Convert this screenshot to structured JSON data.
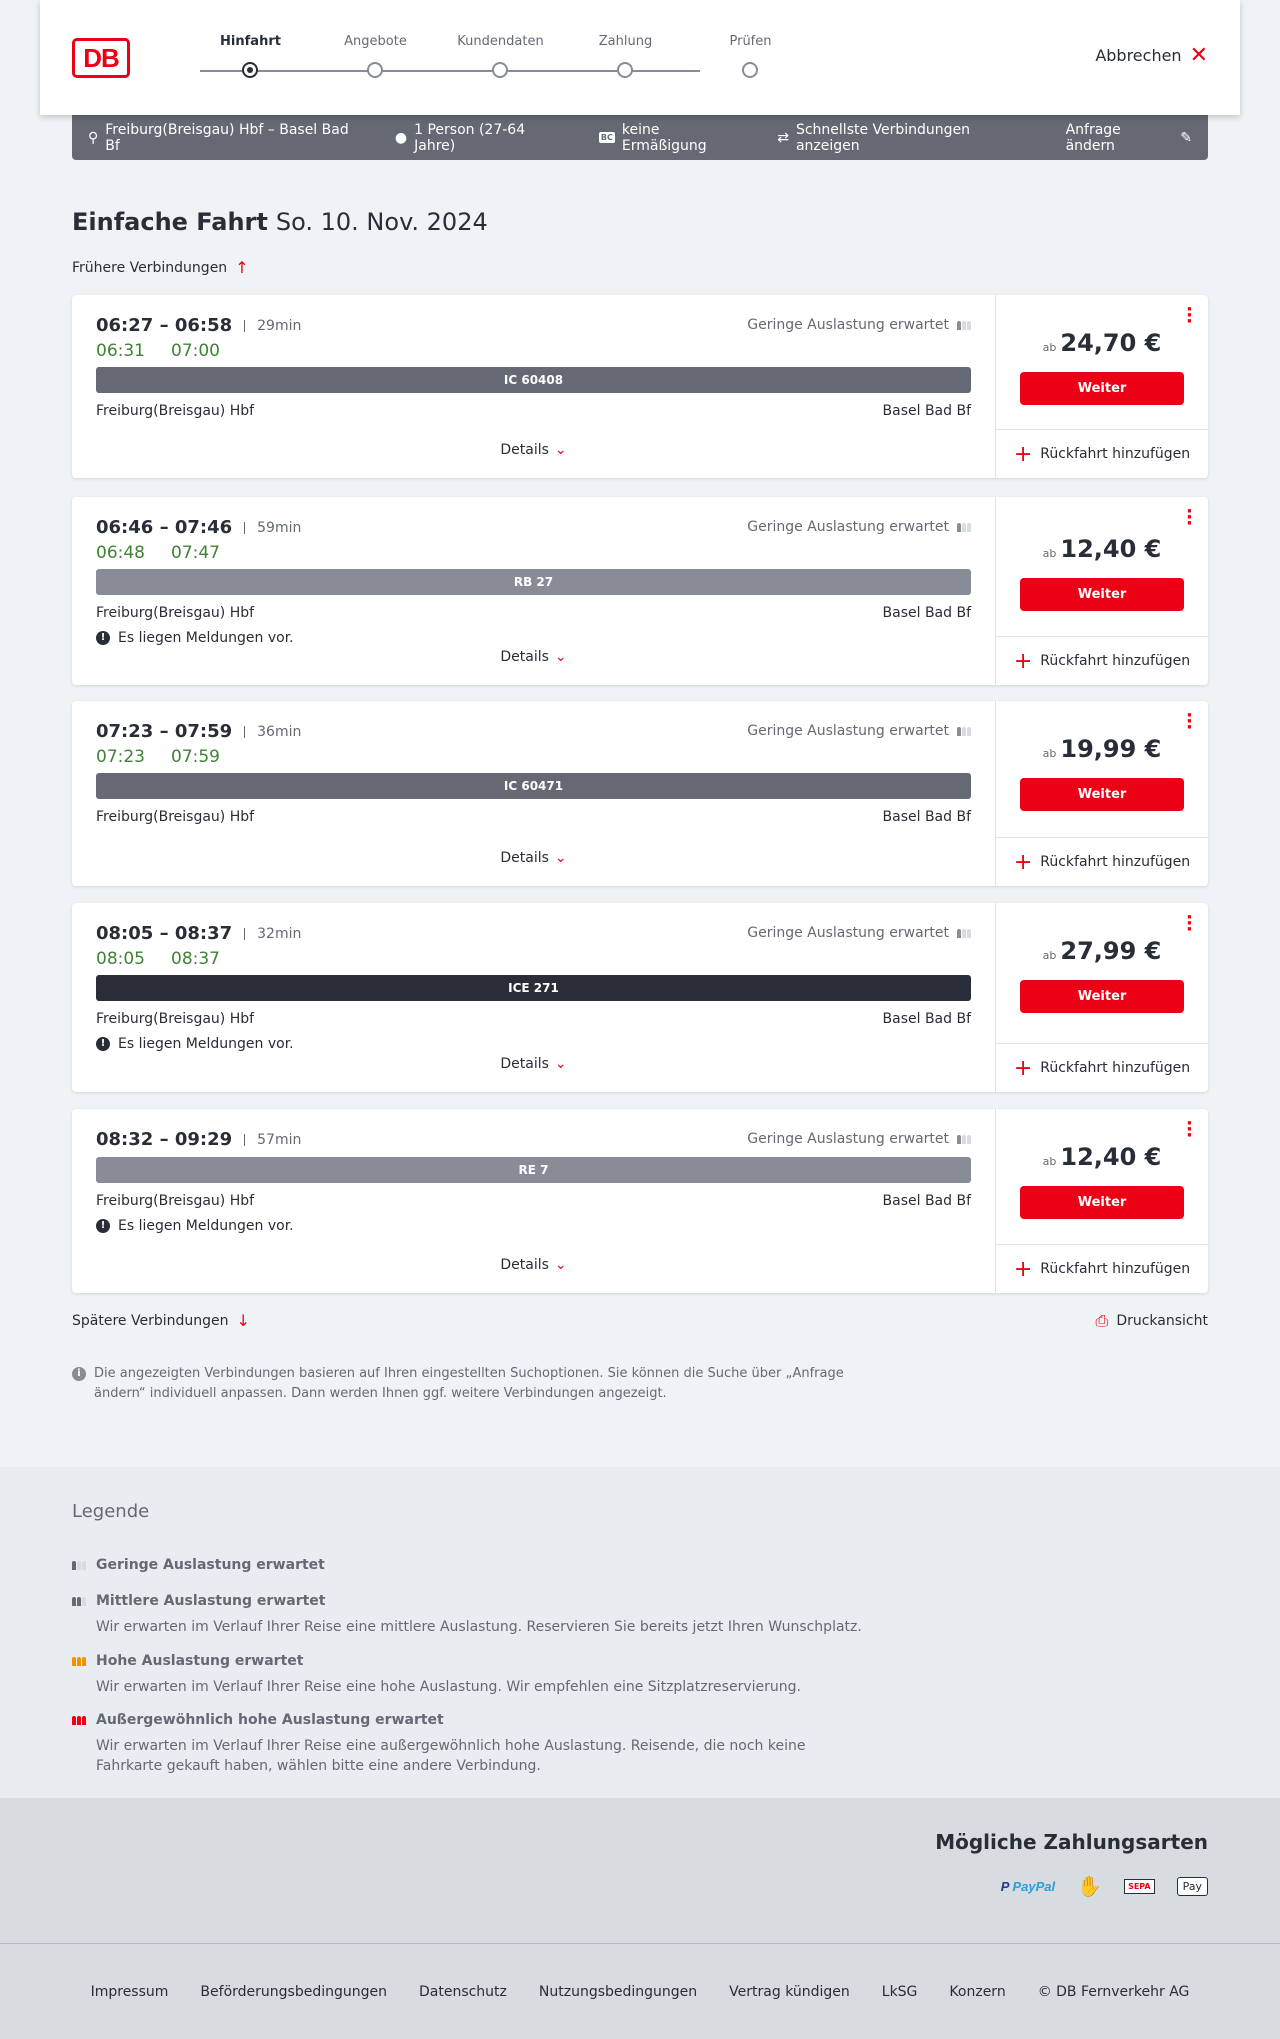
{
  "header": {
    "logo": "DB",
    "steps": [
      "Hinfahrt",
      "Angebote",
      "Kundendaten",
      "Zahlung",
      "Prüfen"
    ],
    "active_step": 0,
    "cancel": "Abbrechen"
  },
  "summary": {
    "route": "Freiburg(Breisgau) Hbf – Basel Bad Bf",
    "persons": "1 Person (27-64 Jahre)",
    "discount_badge": "BC",
    "discount": "keine Ermäßigung",
    "fastest": "Schnellste Verbindungen anzeigen",
    "edit": "Anfrage ändern"
  },
  "page": {
    "title": "Einfache Fahrt",
    "date": "So. 10. Nov. 2024",
    "earlier": "Frühere Verbindungen",
    "later": "Spätere Verbindungen",
    "print": "Druckansicht",
    "info": "Die angezeigten Verbindungen basieren auf Ihren eingestellten Suchoptionen. Sie können die Suche über „Anfrage ändern“ individuell anpassen. Dann werden Ihnen ggf. weitere Verbindungen angezeigt."
  },
  "labels": {
    "load": "Geringe Auslastung erwartet",
    "details": "Details",
    "price_prefix": "ab",
    "continue": "Weiter",
    "return": "Rückfahrt hinzufügen",
    "message": "Es liegen Meldungen vor."
  },
  "journeys": [
    {
      "times": "06:27 – 06:58",
      "duration": "29min",
      "rt_dep": "06:31",
      "rt_arr": "07:00",
      "train": "IC 60408",
      "train_color": "#646973",
      "from": "Freiburg(Breisgau) Hbf",
      "to": "Basel Bad Bf",
      "price": "24,70 €",
      "message": false
    },
    {
      "times": "06:46 – 07:46",
      "duration": "59min",
      "rt_dep": "06:48",
      "rt_arr": "07:47",
      "train": "RB 27",
      "train_color": "#878c96",
      "from": "Freiburg(Breisgau) Hbf",
      "to": "Basel Bad Bf",
      "price": "12,40 €",
      "message": true
    },
    {
      "times": "07:23 – 07:59",
      "duration": "36min",
      "rt_dep": "07:23",
      "rt_arr": "07:59",
      "train": "IC 60471",
      "train_color": "#646973",
      "from": "Freiburg(Breisgau) Hbf",
      "to": "Basel Bad Bf",
      "price": "19,99 €",
      "message": false
    },
    {
      "times": "08:05 – 08:37",
      "duration": "32min",
      "rt_dep": "08:05",
      "rt_arr": "08:37",
      "train": "ICE 271",
      "train_color": "#282d37",
      "from": "Freiburg(Breisgau) Hbf",
      "to": "Basel Bad Bf",
      "price": "27,99 €",
      "message": true
    },
    {
      "times": "08:32 – 09:29",
      "duration": "57min",
      "rt_dep": "",
      "rt_arr": "",
      "train": "RE 7",
      "train_color": "#878c96",
      "from": "Freiburg(Breisgau) Hbf",
      "to": "Basel Bad Bf",
      "price": "12,40 €",
      "message": true
    }
  ],
  "legend": {
    "title": "Legende",
    "items": [
      {
        "title": "Geringe Auslastung erwartet",
        "text": "",
        "level": 1,
        "color": "#646973"
      },
      {
        "title": "Mittlere Auslastung erwartet",
        "text": "Wir erwarten im Verlauf Ihrer Reise eine mittlere Auslastung. Reservieren Sie bereits jetzt Ihren Wunschplatz.",
        "level": 2,
        "color": "#646973"
      },
      {
        "title": "Hohe Auslastung erwartet",
        "text": "Wir erwarten im Verlauf Ihrer Reise eine hohe Auslastung. Wir empfehlen eine Sitzplatzreservierung.",
        "level": 3,
        "color": "#f39200"
      },
      {
        "title": "Außergewöhnlich hohe Auslastung erwartet",
        "text": "Wir erwarten im Verlauf Ihrer Reise eine außergewöhnlich hohe Auslastung. Reisende, die noch keine Fahrkarte gekauft haben, wählen bitte eine andere Verbindung.",
        "level": 4,
        "color": "#ec0016"
      }
    ]
  },
  "payment": {
    "title": "Mögliche Zahlungsarten",
    "methods": [
      "PayPal",
      "Kreditkarte",
      "SEPA",
      "Pay"
    ]
  },
  "footer": {
    "links": [
      "Impressum",
      "Beförderungsbedingungen",
      "Datenschutz",
      "Nutzungsbedingungen",
      "Vertrag kündigen",
      "LkSG",
      "Konzern",
      "© DB Fernverkehr AG"
    ]
  },
  "colors": {
    "accent": "#ec0016",
    "realtime": "#408335"
  }
}
